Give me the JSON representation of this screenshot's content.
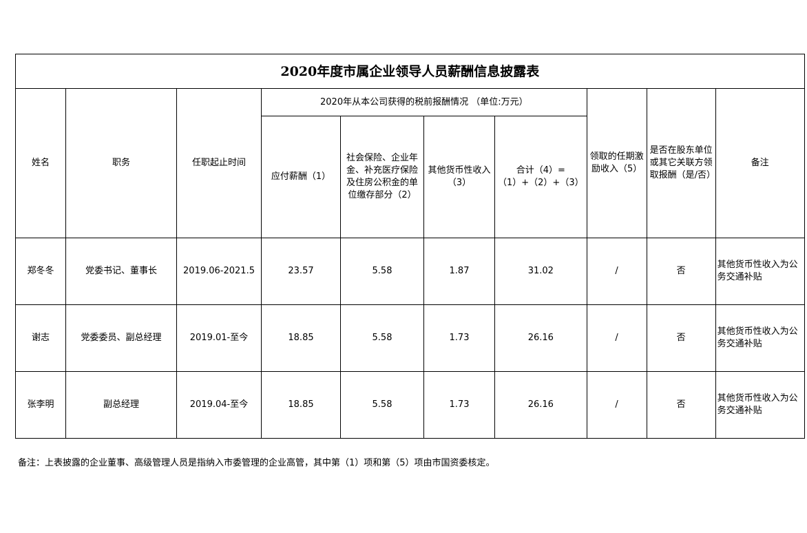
{
  "title": "2020年度市属企业领导人员薪酬信息披露表",
  "headers": {
    "name": "姓名",
    "position": "职务",
    "term": "任职起止时间",
    "group": "2020年从本公司获得的税前报酬情况 （单位:万元）",
    "salary": "应付薪酬（1）",
    "insurance": "社会保险、企业年金、补充医疗保险及住房公积金的单位缴存部分（2）",
    "other": "其他货币性收入（3）",
    "total": "合计（4）=（1）+（2）+（3）",
    "incentive": "领取的任期激励收入（5）",
    "shareholder": "是否在股东单位或其它关联方领取报酬（是/否）",
    "remark": "备注"
  },
  "rows": [
    {
      "name": "郑冬冬",
      "position": "党委书记、董事长",
      "term": "2019.06-2021.5",
      "salary": "23.57",
      "insurance": "5.58",
      "other": "1.87",
      "total": "31.02",
      "incentive": "/",
      "shareholder": "否",
      "remark": "其他货币性收入为公务交通补贴"
    },
    {
      "name": "谢志",
      "position": "党委委员、副总经理",
      "term": "2019.01-至今",
      "salary": "18.85",
      "insurance": "5.58",
      "other": "1.73",
      "total": "26.16",
      "incentive": "/",
      "shareholder": "否",
      "remark": "其他货币性收入为公务交通补贴"
    },
    {
      "name": "张李明",
      "position": "副总经理",
      "term": "2019.04-至今",
      "salary": "18.85",
      "insurance": "5.58",
      "other": "1.73",
      "total": "26.16",
      "incentive": "/",
      "shareholder": "否",
      "remark": "其他货币性收入为公务交通补贴"
    }
  ],
  "note": "备注：上表披露的企业董事、高级管理人员是指纳入市委管理的企业高管，其中第（1）项和第（5）项由市国资委核定。"
}
